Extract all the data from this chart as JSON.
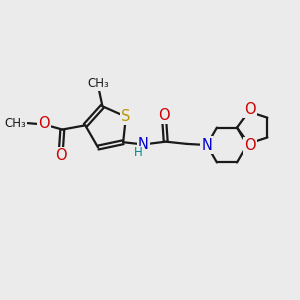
{
  "bg_color": "#ebebeb",
  "bond_color": "#1a1a1a",
  "bond_lw": 1.6,
  "dbo": 0.07,
  "atom_colors": {
    "S": "#b8960a",
    "O": "#cc0000",
    "N": "#0000cc",
    "H": "#008888"
  },
  "fsize": 10.5,
  "xlim": [
    0,
    10
  ],
  "ylim": [
    0,
    8
  ]
}
